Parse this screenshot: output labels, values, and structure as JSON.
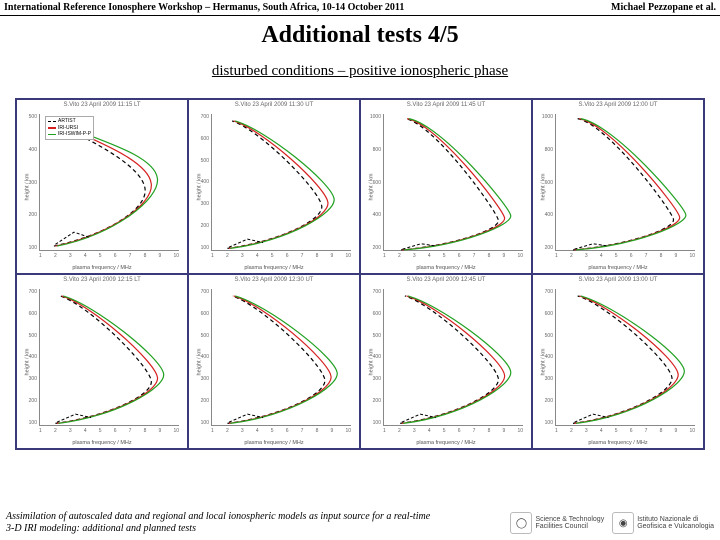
{
  "header": {
    "left": "International Reference Ionosphere Workshop – Hermanus, South Africa, 10-14 October 2011",
    "right": "Michael Pezzopane et al."
  },
  "title": "Additional tests 4/5",
  "subtitle": "disturbed conditions – positive ionospheric phase",
  "chart": {
    "xlabel": "plasma frequency / MHz",
    "ylabel": "height / km",
    "xticks": [
      "1",
      "2",
      "3",
      "4",
      "5",
      "6",
      "7",
      "8",
      "9",
      "10"
    ],
    "series": [
      {
        "name": "ARTIST",
        "color": "#000000",
        "dash": "4,3"
      },
      {
        "name": "IRI-URSI",
        "color": "#d62020",
        "dash": ""
      },
      {
        "name": "IRI-ISWIM-P-P",
        "color": "#1fa01f",
        "dash": ""
      }
    ],
    "legend_panel": 0,
    "panels": [
      {
        "title": "S.Vito   23 April 2009   11:15 LT",
        "ymin": 100,
        "ymax": 500,
        "apex_h": 300,
        "apex_f": 8.2,
        "bottom_f": 2.0
      },
      {
        "title": "S.Vito   23 April 2009   11:30 UT",
        "ymin": 100,
        "ymax": 700,
        "apex_h": 320,
        "apex_f": 8.5,
        "bottom_f": 2.1
      },
      {
        "title": "S.Vito   23 April 2009   11:45 UT",
        "ymin": 100,
        "ymax": 1000,
        "apex_h": 330,
        "apex_f": 8.8,
        "bottom_f": 2.2
      },
      {
        "title": "S.Vito   23 April 2009   12:00 UT",
        "ymin": 100,
        "ymax": 1000,
        "apex_h": 335,
        "apex_f": 9.0,
        "bottom_f": 2.2
      },
      {
        "title": "S.Vito   23 April 2009   12:15 LT",
        "ymin": 100,
        "ymax": 700,
        "apex_h": 320,
        "apex_f": 8.6,
        "bottom_f": 2.1
      },
      {
        "title": "S.Vito   23 April 2009   12:30 UT",
        "ymin": 100,
        "ymax": 700,
        "apex_h": 325,
        "apex_f": 8.7,
        "bottom_f": 2.1
      },
      {
        "title": "S.Vito   23 April 2009   12:45 UT",
        "ymin": 100,
        "ymax": 700,
        "apex_h": 330,
        "apex_f": 8.8,
        "bottom_f": 2.15
      },
      {
        "title": "S.Vito   23 April 2009   13:00 UT",
        "ymin": 100,
        "ymax": 700,
        "apex_h": 335,
        "apex_f": 8.9,
        "bottom_f": 2.2
      }
    ]
  },
  "footer": {
    "text": "Assimilation of autoscaled data and regional and local ionospheric models as input source for a real-time 3-D IRI modeling: additional and planned tests",
    "logos": [
      {
        "label": "Science & Technology",
        "sub": "Facilities Council",
        "icon": "◯"
      },
      {
        "label": "Istituto Nazionale di",
        "sub": "Geofisica e Vulcanologia",
        "icon": "◉"
      }
    ]
  }
}
